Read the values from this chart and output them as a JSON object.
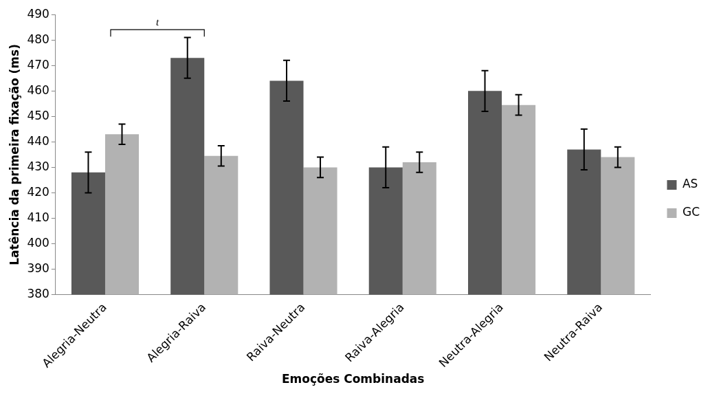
{
  "chart_data": {
    "type": "bar",
    "xlabel": "Emoções Combinadas",
    "ylabel": "Latência da primeira fixação (ms)",
    "categories": [
      "Alegria-Neutra",
      "Alegria-Raiva",
      "Raiva-Neutra",
      "Raiva-Alegria",
      "Neutra-Alegria",
      "Neutra-Raiva"
    ],
    "series": [
      {
        "name": "AS",
        "color": "#595959",
        "values": [
          428,
          473,
          464,
          430,
          460,
          437
        ],
        "errors": [
          8,
          8,
          8,
          8,
          8,
          8
        ]
      },
      {
        "name": "GC",
        "color": "#b2b2b2",
        "values": [
          443,
          434.5,
          430,
          432,
          454.5,
          434
        ],
        "errors": [
          4,
          4,
          4,
          4,
          4,
          4
        ]
      }
    ],
    "ylim": [
      380,
      490
    ],
    "yticks": [
      380,
      390,
      400,
      410,
      420,
      430,
      440,
      450,
      460,
      470,
      480,
      490
    ],
    "grid": false,
    "legend": "right",
    "annotations": [
      "t"
    ]
  }
}
